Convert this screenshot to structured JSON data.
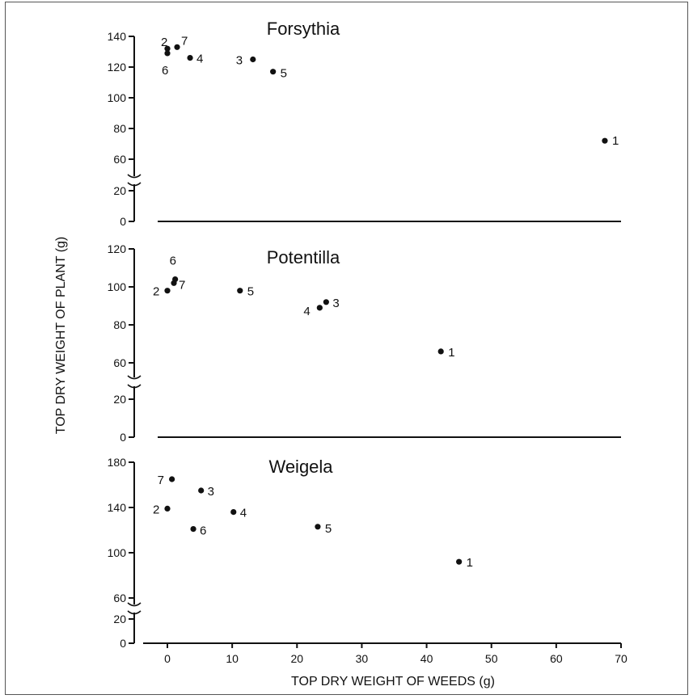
{
  "chart_data": {
    "type": "scatter",
    "ylabel": "TOP DRY WEIGHT OF PLANT (g)",
    "xlabel": "TOP DRY WEIGHT OF WEEDS (g)",
    "xlim": [
      0,
      70
    ],
    "xticks": [
      "0",
      "10",
      "20",
      "30",
      "40",
      "50",
      "60",
      "70"
    ],
    "panels": [
      {
        "title": "Forsythia",
        "ylim": [
          0,
          140
        ],
        "axis_break": [
          20,
          60
        ],
        "yticks": [
          "0",
          "20",
          "60",
          "80",
          "100",
          "120",
          "140"
        ],
        "points": [
          {
            "label": "1",
            "x": 67.5,
            "y": 72
          },
          {
            "label": "2",
            "x": 0,
            "y": 132
          },
          {
            "label": "3",
            "x": 13.2,
            "y": 125
          },
          {
            "label": "4",
            "x": 3.5,
            "y": 126
          },
          {
            "label": "5",
            "x": 16.3,
            "y": 117
          },
          {
            "label": "6",
            "x": 0,
            "y": 129
          },
          {
            "label": "7",
            "x": 1.5,
            "y": 133
          }
        ]
      },
      {
        "title": "Potentilla",
        "ylim": [
          0,
          120
        ],
        "axis_break": [
          20,
          60
        ],
        "yticks": [
          "0",
          "20",
          "60",
          "80",
          "100",
          "120"
        ],
        "points": [
          {
            "label": "1",
            "x": 42.2,
            "y": 66
          },
          {
            "label": "2",
            "x": 0,
            "y": 98
          },
          {
            "label": "3",
            "x": 24.5,
            "y": 92
          },
          {
            "label": "4",
            "x": 23.5,
            "y": 89
          },
          {
            "label": "5",
            "x": 11.2,
            "y": 98
          },
          {
            "label": "6",
            "x": 1.2,
            "y": 104
          },
          {
            "label": "7",
            "x": 1.0,
            "y": 102
          }
        ]
      },
      {
        "title": "Weigela",
        "ylim": [
          0,
          180
        ],
        "axis_break": [
          20,
          60
        ],
        "yticks": [
          "0",
          "20",
          "60",
          "100",
          "140",
          "180"
        ],
        "points": [
          {
            "label": "1",
            "x": 45.0,
            "y": 92
          },
          {
            "label": "2",
            "x": 0,
            "y": 139
          },
          {
            "label": "3",
            "x": 5.2,
            "y": 155
          },
          {
            "label": "4",
            "x": 10.2,
            "y": 136
          },
          {
            "label": "5",
            "x": 23.2,
            "y": 123
          },
          {
            "label": "6",
            "x": 4.0,
            "y": 121
          },
          {
            "label": "7",
            "x": 0.7,
            "y": 165
          }
        ]
      }
    ]
  }
}
